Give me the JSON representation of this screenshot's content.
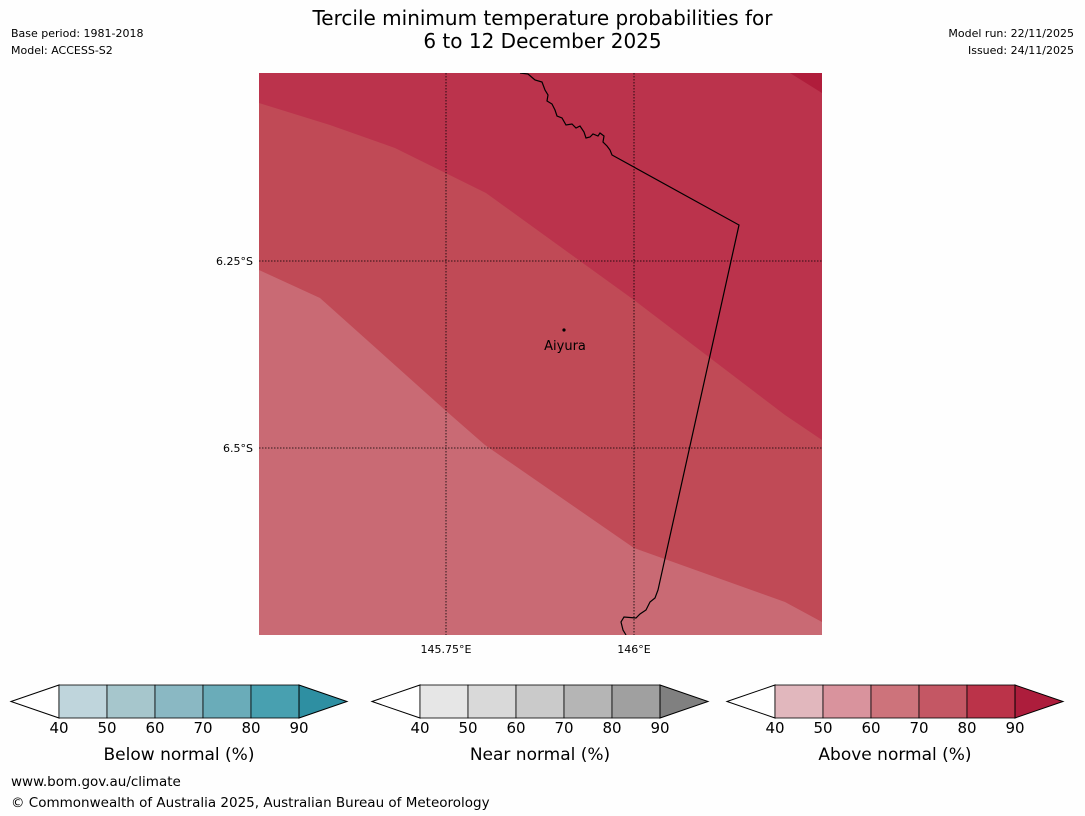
{
  "header": {
    "title_line1": "Tercile minimum temperature probabilities for",
    "title_line2": "6 to 12 December 2025",
    "base_period": "Base period: 1981-2018",
    "model": "Model: ACCESS-S2",
    "model_run": "Model run: 22/11/2025",
    "issued": "Issued: 24/11/2025"
  },
  "map": {
    "lat_labels": [
      "6.25°S",
      "6.5°S"
    ],
    "lon_labels": [
      "145.75°E",
      "146°E"
    ],
    "place": "Aiyura",
    "colors": {
      "p60_70": "#c96a74",
      "p70_80": "#c04a56",
      "p80_90": "#bb334c",
      "p90": "#b01d3b",
      "border": "#000000"
    }
  },
  "colorbars": [
    {
      "label": "Below normal (%)",
      "ticks": [
        "40",
        "50",
        "60",
        "70",
        "80",
        "90"
      ],
      "colors": [
        "#bfd5dc",
        "#a6c6cc",
        "#8ab8c3",
        "#6aacb9",
        "#48a0b0"
      ],
      "extend": "#2e8fa2"
    },
    {
      "label": "Near normal (%)",
      "ticks": [
        "40",
        "50",
        "60",
        "70",
        "80",
        "90"
      ],
      "colors": [
        "#e6e6e6",
        "#d9d9d9",
        "#cacaca",
        "#b5b5b5",
        "#a0a0a0"
      ],
      "extend": "#808080"
    },
    {
      "label": "Above normal (%)",
      "ticks": [
        "40",
        "50",
        "60",
        "70",
        "80",
        "90"
      ],
      "colors": [
        "#e1b7bd",
        "#d9939d",
        "#cd737b",
        "#c45764",
        "#bb3349"
      ],
      "extend": "#ad1d3c"
    }
  ],
  "footer": {
    "url": "www.bom.gov.au/climate",
    "copyright": "© Commonwealth of Australia 2025, Australian Bureau of Meteorology"
  }
}
